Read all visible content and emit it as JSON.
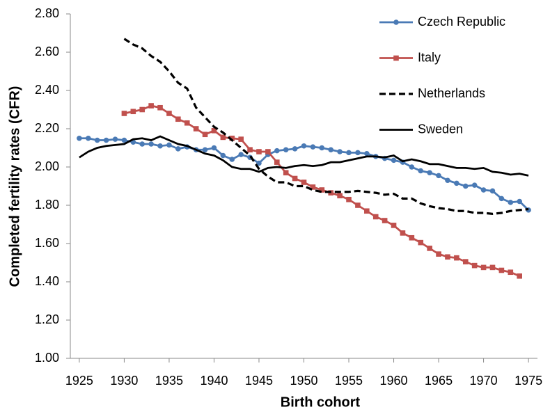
{
  "chart_data": {
    "type": "line",
    "x_label": "Birth cohort",
    "y_label": "Completed fertility rates (CFR)",
    "x": [
      1925,
      1926,
      1927,
      1928,
      1929,
      1930,
      1931,
      1932,
      1933,
      1934,
      1935,
      1936,
      1937,
      1938,
      1939,
      1940,
      1941,
      1942,
      1943,
      1944,
      1945,
      1946,
      1947,
      1948,
      1949,
      1950,
      1951,
      1952,
      1953,
      1954,
      1955,
      1956,
      1957,
      1958,
      1959,
      1960,
      1961,
      1962,
      1963,
      1964,
      1965,
      1966,
      1967,
      1968,
      1969,
      1970,
      1971,
      1972,
      1973,
      1974,
      1975
    ],
    "series": [
      {
        "name": "Czech Republic",
        "color": "#4a7ab5",
        "marker": "circle",
        "dash": false,
        "values": [
          2.15,
          2.15,
          2.14,
          2.14,
          2.145,
          2.14,
          2.13,
          2.12,
          2.12,
          2.11,
          2.115,
          2.095,
          2.105,
          2.09,
          2.09,
          2.1,
          2.06,
          2.04,
          2.065,
          2.05,
          2.02,
          2.065,
          2.085,
          2.09,
          2.095,
          2.11,
          2.105,
          2.1,
          2.09,
          2.08,
          2.075,
          2.075,
          2.07,
          2.055,
          2.045,
          2.035,
          2.025,
          2.0,
          1.98,
          1.97,
          1.955,
          1.93,
          1.915,
          1.9,
          1.905,
          1.88,
          1.875,
          1.835,
          1.815,
          1.82,
          1.775
        ]
      },
      {
        "name": "Italy",
        "color": "#c0504d",
        "marker": "square",
        "dash": false,
        "values": [
          null,
          null,
          null,
          null,
          null,
          2.28,
          2.29,
          2.3,
          2.32,
          2.31,
          2.28,
          2.25,
          2.23,
          2.2,
          2.17,
          2.19,
          2.155,
          2.15,
          2.145,
          2.09,
          2.08,
          2.08,
          2.025,
          1.97,
          1.94,
          1.92,
          1.895,
          1.88,
          1.865,
          1.85,
          1.83,
          1.8,
          1.77,
          1.74,
          1.72,
          1.695,
          1.655,
          1.63,
          1.605,
          1.575,
          1.545,
          1.53,
          1.525,
          1.505,
          1.485,
          1.475,
          1.475,
          1.46,
          1.45,
          1.43,
          null
        ]
      },
      {
        "name": "Netherlands",
        "color": "#000000",
        "marker": null,
        "dash": true,
        "values": [
          null,
          null,
          null,
          null,
          null,
          2.67,
          2.64,
          2.62,
          2.58,
          2.55,
          2.5,
          2.44,
          2.41,
          2.31,
          2.26,
          2.21,
          2.18,
          2.14,
          2.1,
          2.06,
          1.99,
          1.95,
          1.92,
          1.92,
          1.9,
          1.9,
          1.88,
          1.87,
          1.87,
          1.87,
          1.87,
          1.875,
          1.87,
          1.865,
          1.855,
          1.86,
          1.835,
          1.835,
          1.81,
          1.795,
          1.785,
          1.78,
          1.77,
          1.77,
          1.76,
          1.76,
          1.755,
          1.76,
          1.77,
          1.775,
          1.78
        ]
      },
      {
        "name": "Sweden",
        "color": "#000000",
        "marker": null,
        "dash": false,
        "values": [
          2.05,
          2.08,
          2.1,
          2.11,
          2.115,
          2.12,
          2.145,
          2.15,
          2.14,
          2.16,
          2.14,
          2.12,
          2.11,
          2.09,
          2.07,
          2.06,
          2.035,
          2.0,
          1.99,
          1.99,
          1.975,
          1.995,
          2.0,
          1.995,
          2.005,
          2.01,
          2.005,
          2.01,
          2.025,
          2.025,
          2.035,
          2.045,
          2.055,
          2.055,
          2.05,
          2.06,
          2.03,
          2.04,
          2.03,
          2.015,
          2.015,
          2.005,
          1.995,
          1.995,
          1.99,
          1.995,
          1.975,
          1.97,
          1.96,
          1.965,
          1.955
        ]
      }
    ],
    "xlim": [
      1924,
      1976
    ],
    "xticks": [
      1925,
      1930,
      1935,
      1940,
      1945,
      1950,
      1955,
      1960,
      1965,
      1970,
      1975
    ],
    "ylim": [
      1,
      2.8
    ],
    "yticks": [
      {
        "value": 1,
        "label": "1.00"
      },
      {
        "value": 1.2,
        "label": "1.20"
      },
      {
        "value": 1.4,
        "label": "1.40"
      },
      {
        "value": 1.6,
        "label": "1.60"
      },
      {
        "value": 1.8,
        "label": "1.80"
      },
      {
        "value": 2,
        "label": "2.00"
      },
      {
        "value": 2.2,
        "label": "2.20"
      },
      {
        "value": 2.4,
        "label": "2.40"
      },
      {
        "value": 2.6,
        "label": "2.60"
      },
      {
        "value": 2.8,
        "label": "2.80"
      }
    ],
    "grid": false,
    "legend": "top-right"
  }
}
